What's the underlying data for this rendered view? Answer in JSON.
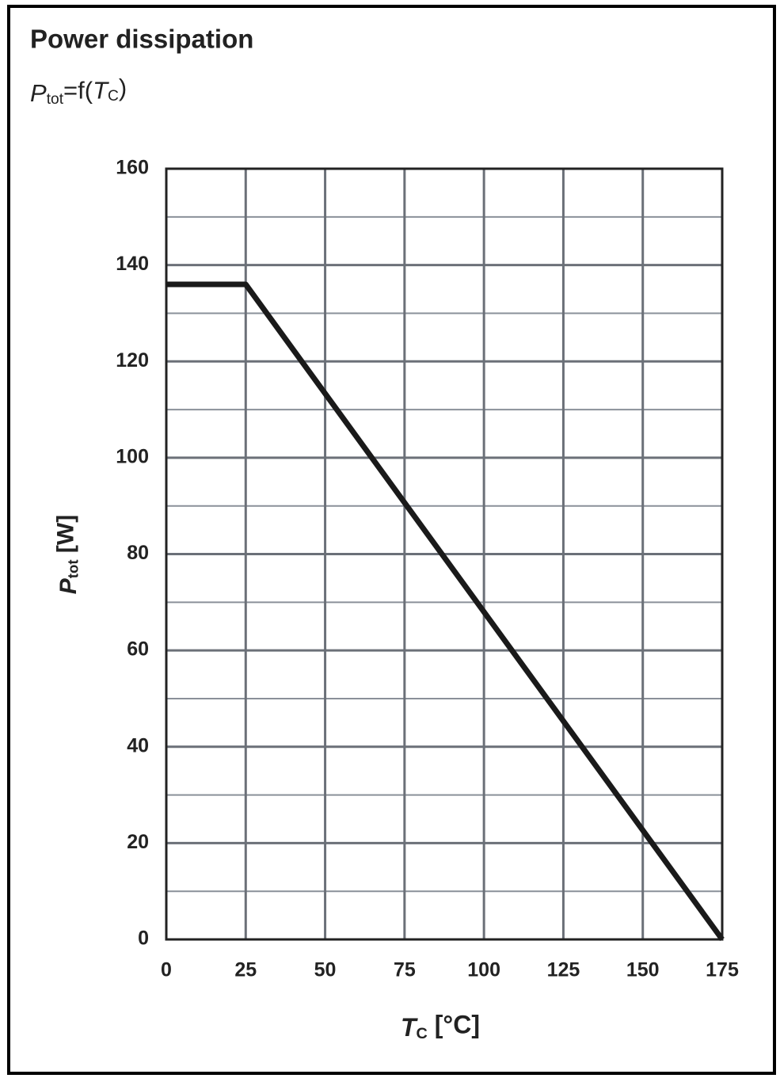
{
  "chart_data": {
    "type": "line",
    "title": "Power dissipation",
    "subtitle": [
      "P",
      "tot",
      "=f(",
      "T",
      "C",
      ")"
    ],
    "x_label": [
      "T",
      "C",
      " [°C]"
    ],
    "y_label": [
      "P",
      "tot",
      " [W]"
    ],
    "x": [
      0,
      25,
      175
    ],
    "series": [
      {
        "name": "Ptot",
        "color": "#1a1a1a",
        "values": [
          136,
          136,
          0
        ]
      }
    ],
    "xlim": [
      0,
      175
    ],
    "xticks": [
      0,
      25,
      50,
      75,
      100,
      125,
      150,
      175
    ],
    "ylim": [
      0,
      160
    ],
    "yticks": [
      0,
      20,
      40,
      60,
      80,
      100,
      120,
      140,
      160
    ],
    "yminor": [
      10,
      30,
      50,
      70,
      90,
      110,
      130,
      150
    ],
    "grid": true
  }
}
